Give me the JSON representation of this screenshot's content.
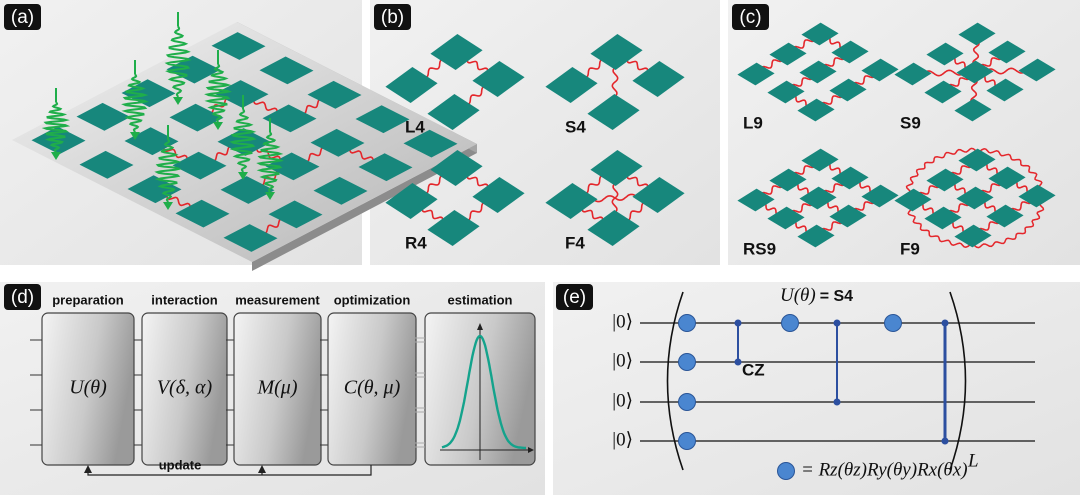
{
  "panels": {
    "a": {
      "label": "(a)"
    },
    "b": {
      "label": "(b)",
      "graphs": [
        "L4",
        "S4",
        "R4",
        "F4"
      ]
    },
    "c": {
      "label": "(c)",
      "graphs": [
        "L9",
        "S9",
        "RS9",
        "F9"
      ]
    },
    "d": {
      "label": "(d)",
      "stages": [
        "preparation",
        "interaction",
        "measurement",
        "optimization",
        "estimation"
      ],
      "operators": [
        "U(θ)",
        "V(δ, α)",
        "M(μ)",
        "C(θ, μ)"
      ],
      "feedback": "update"
    },
    "e": {
      "label": "(e)",
      "inputs": [
        "|0⟩",
        "|0⟩",
        "|0⟩",
        "|0⟩"
      ],
      "unitary": "U(θ)",
      "equals": "= S4",
      "gate": "CZ",
      "legend": "= Rz(θz)Ry(θy)Rx(θx)",
      "repeat": "L"
    }
  }
}
